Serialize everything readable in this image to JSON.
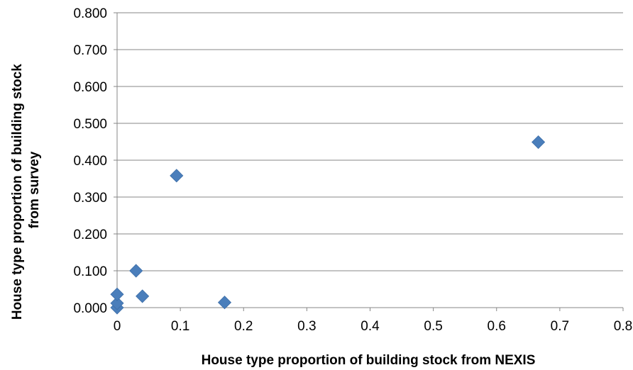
{
  "chart_data": {
    "type": "scatter",
    "title": "",
    "xlabel": "House type proportion of building stock from NEXIS",
    "ylabel": [
      "House type proportion of building stock",
      "from survey"
    ],
    "xlim": [
      0,
      0.8
    ],
    "ylim": [
      0,
      0.8
    ],
    "x_ticks": [
      "0",
      "0.1",
      "0.2",
      "0.3",
      "0.4",
      "0.5",
      "0.6",
      "0.7",
      "0.8"
    ],
    "y_ticks": [
      "0.000",
      "0.100",
      "0.200",
      "0.300",
      "0.400",
      "0.500",
      "0.600",
      "0.700",
      "0.800"
    ],
    "x_tick_values": [
      0,
      0.1,
      0.2,
      0.3,
      0.4,
      0.5,
      0.6,
      0.7,
      0.8
    ],
    "y_tick_values": [
      0,
      0.1,
      0.2,
      0.3,
      0.4,
      0.5,
      0.6,
      0.7,
      0.8
    ],
    "grid": "horizontal",
    "marker_color": "#4a7ebb",
    "marker_shape": "diamond",
    "points": [
      {
        "x": 0.0,
        "y": 0.0
      },
      {
        "x": 0.0,
        "y": 0.012
      },
      {
        "x": 0.0,
        "y": 0.036
      },
      {
        "x": 0.03,
        "y": 0.1
      },
      {
        "x": 0.04,
        "y": 0.031
      },
      {
        "x": 0.094,
        "y": 0.358
      },
      {
        "x": 0.17,
        "y": 0.014
      },
      {
        "x": 0.666,
        "y": 0.449
      }
    ]
  }
}
